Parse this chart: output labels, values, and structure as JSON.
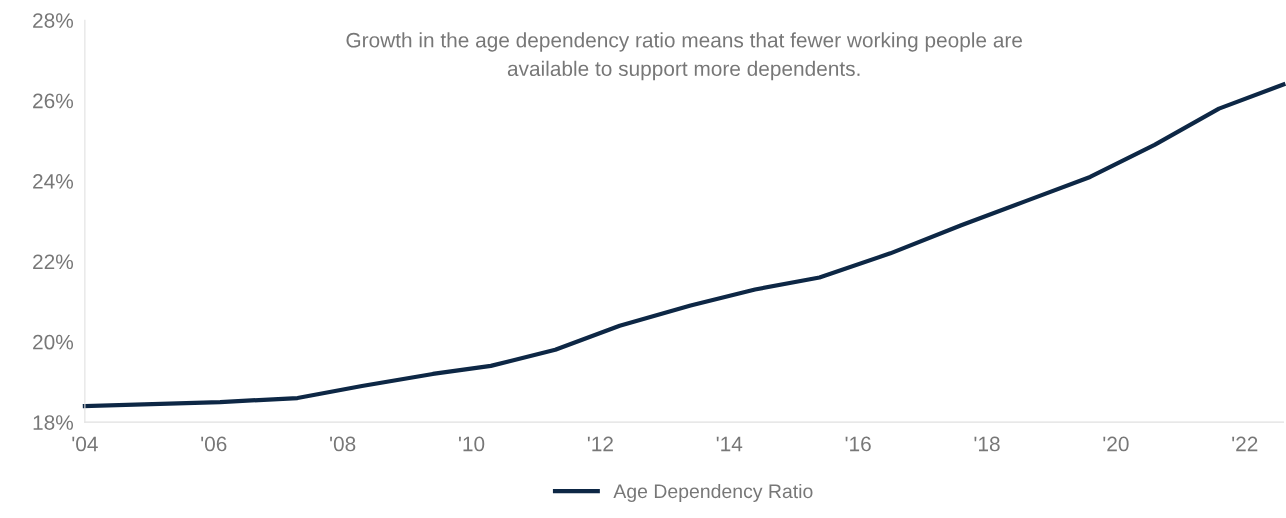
{
  "chart_data": {
    "type": "line",
    "annotations": [
      "Growth in the age dependency ratio means that fewer working people are\navailable to support more dependents."
    ],
    "x": [
      2004.0,
      2006.1,
      2007.3,
      2008.3,
      2009.4,
      2010.3,
      2011.3,
      2012.3,
      2013.4,
      2014.4,
      2015.4,
      2016.5,
      2017.6,
      2018.6,
      2019.6,
      2020.6,
      2021.6,
      2022.6
    ],
    "series": [
      {
        "name": "Age Dependency Ratio",
        "color": "#0d2745",
        "values": [
          18.4,
          18.5,
          18.6,
          18.9,
          19.2,
          19.4,
          19.8,
          20.4,
          20.9,
          21.3,
          21.6,
          22.2,
          22.9,
          23.5,
          24.1,
          24.9,
          25.8,
          26.4
        ]
      }
    ],
    "xlim": [
      2004,
      2022.6
    ],
    "xticks": [
      {
        "value": 2004,
        "label": "'04"
      },
      {
        "value": 2006,
        "label": "'06"
      },
      {
        "value": 2008,
        "label": "'08"
      },
      {
        "value": 2010,
        "label": "'10"
      },
      {
        "value": 2012,
        "label": "'12"
      },
      {
        "value": 2014,
        "label": "'14"
      },
      {
        "value": 2016,
        "label": "'16"
      },
      {
        "value": 2018,
        "label": "'18"
      },
      {
        "value": 2020,
        "label": "'20"
      },
      {
        "value": 2022,
        "label": "'22"
      }
    ],
    "ylim": [
      18,
      28
    ],
    "yticks": [
      {
        "value": 18,
        "label": "18%"
      },
      {
        "value": 20,
        "label": "20%"
      },
      {
        "value": 22,
        "label": "22%"
      },
      {
        "value": 24,
        "label": "24%"
      },
      {
        "value": 26,
        "label": "26%"
      },
      {
        "value": 28,
        "label": "28%"
      }
    ],
    "grid": false,
    "legend": "bottom",
    "marker": "none",
    "line_style": "solid"
  }
}
